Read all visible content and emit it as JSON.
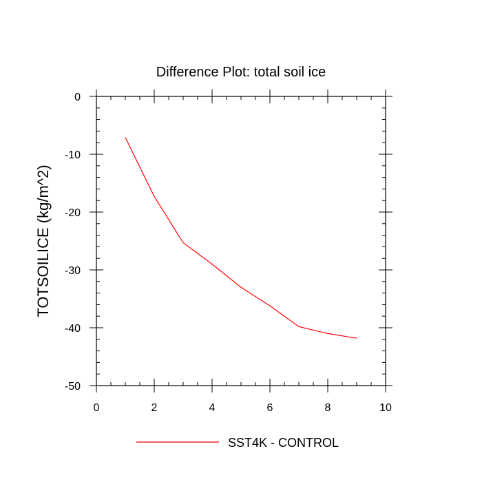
{
  "chart_data": {
    "type": "line",
    "title": "Difference Plot: total soil ice",
    "xlabel": "",
    "ylabel": "TOTSOILICE  (kg/m^2)",
    "xlim": [
      0,
      10
    ],
    "ylim": [
      -50,
      0
    ],
    "x_ticks": [
      0,
      2,
      4,
      6,
      8,
      10
    ],
    "y_ticks": [
      0,
      -10,
      -20,
      -30,
      -40,
      -50
    ],
    "x_minor_step": 0.5,
    "y_minor_step": 2,
    "grid": false,
    "legend_position": "bottom-center",
    "series": [
      {
        "name": "SST4K - CONTROL",
        "color": "#ff0000",
        "x": [
          1,
          2,
          3,
          4,
          5,
          6,
          7,
          8,
          9
        ],
        "y": [
          -7.1,
          -17.3,
          -25.3,
          -29.0,
          -33.0,
          -36.2,
          -39.8,
          -41.0,
          -41.8
        ]
      }
    ]
  }
}
